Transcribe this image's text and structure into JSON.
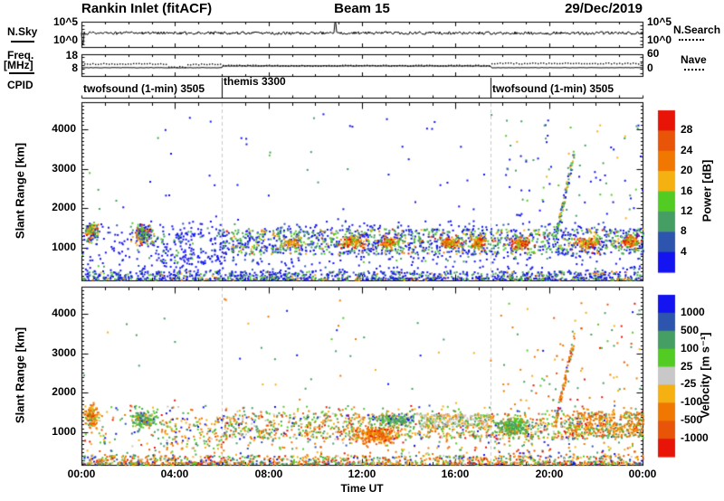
{
  "header": {
    "title": "Rankin Inlet (fitACF)",
    "beam": "Beam 15",
    "date": "29/Dec/2019"
  },
  "labels": {
    "nsky": "N.Sky",
    "nsearch": "N.Search",
    "freq1": "Freq.",
    "freq2": "[MHz]",
    "nave": "Nave",
    "cpid": "CPID",
    "slant_range": "Slant Range [km]",
    "time_ut": "Time UT",
    "nsky_hi": "10^5",
    "nsky_lo": "10^0",
    "freq_hi": "18",
    "freq_lo": "8",
    "nave_hi": "60",
    "nave_lo": "0"
  },
  "palette": {
    "blue": "#1414f0",
    "steelblue": "#2d55ae",
    "seagreen": "#459e63",
    "green": "#52cc22",
    "gray": "#c8c8c8",
    "gold": "#f5b012",
    "orange": "#f07800",
    "orangered": "#e85408",
    "red": "#e81408",
    "dashed_guide": "#c9c9c9",
    "axis": "#000000"
  },
  "time_axis": {
    "label": "Time UT",
    "tick_labels": [
      "00:00",
      "04:00",
      "08:00",
      "12:00",
      "16:00",
      "20:00",
      "00:00"
    ],
    "tick_hours": [
      0,
      4,
      8,
      12,
      16,
      20,
      24
    ],
    "range_hours": [
      0,
      24
    ]
  },
  "chart_data": [
    {
      "id": "nsky_panel",
      "type": "line",
      "left_title": "N.Sky",
      "right_title": "N.Search",
      "y_scale": "log",
      "y_tick_labels": [
        "10^5",
        "10^0"
      ],
      "series": [
        {
          "name": "N.Sky",
          "style": "solid",
          "baseline_frac": 0.45,
          "noise_frac": 0.12,
          "spikes": [
            {
              "t": 0.05,
              "frac": 0.88
            },
            {
              "t": 10.85,
              "frac": 0.05
            }
          ]
        },
        {
          "name": "N.Search",
          "style": "dotted",
          "visible_in_plot": false
        }
      ]
    },
    {
      "id": "freq_nave_panel",
      "type": "line",
      "left_title": "Freq. [MHz]",
      "left_tick_labels": [
        "18",
        "8"
      ],
      "right_title": "Nave",
      "right_tick_labels": [
        "60",
        "0"
      ],
      "series": [
        {
          "name": "Freq",
          "style": "solid",
          "steps": [
            {
              "t0": 0,
              "t1": 6,
              "frac": 0.62
            },
            {
              "t0": 6,
              "t1": 17.5,
              "frac": 0.54
            },
            {
              "t0": 17.5,
              "t1": 24,
              "frac": 0.62
            }
          ]
        },
        {
          "name": "Nave",
          "style": "dotted",
          "steps": [
            {
              "t0": 0,
              "t1": 3.7,
              "frac": 0.42
            },
            {
              "t0": 3.7,
              "t1": 4.5,
              "frac": 0.56
            },
            {
              "t0": 4.5,
              "t1": 6,
              "frac": 0.44
            },
            {
              "t0": 6,
              "t1": 17.5,
              "frac": 0.5
            },
            {
              "t0": 17.5,
              "t1": 24,
              "frac": 0.4
            }
          ]
        }
      ]
    },
    {
      "id": "cpid_row",
      "type": "timeline",
      "label": "CPID",
      "segments": [
        {
          "text": "twofsound (1-min) 3505",
          "t_start": 0,
          "row": "low"
        },
        {
          "text": "themis 3300",
          "t_start": 6,
          "row": "high"
        },
        {
          "text": "twofsound (1-min) 3505",
          "t_start": 17.5,
          "row": "low"
        }
      ],
      "boundaries_hours": [
        6,
        17.5
      ]
    },
    {
      "id": "power_panel",
      "type": "scatter",
      "ylabel": "Slant Range [km]",
      "y_range_km": [
        180,
        4680
      ],
      "y_tick_km": [
        1000,
        2000,
        3000,
        4000
      ],
      "guide_lines_hours": [
        6,
        17.5
      ],
      "colorbar": {
        "title": "Power [dB]",
        "boundary_labels": [
          "28",
          "24",
          "20",
          "16",
          "12",
          "8",
          "4"
        ],
        "segment_colors_top_to_bottom": [
          "red",
          "orangered",
          "orange",
          "gold",
          "green",
          "seagreen",
          "steelblue",
          "blue"
        ]
      },
      "clusters": [
        {
          "name": "meteor-band",
          "t": [
            0,
            24
          ],
          "r": [
            180,
            430
          ],
          "n": 900,
          "shape": "uniform",
          "colors": {
            "blue": 0.5,
            "steelblue": 0.12,
            "seagreen": 0.18,
            "green": 0.12,
            "gold": 0.04,
            "orange": 0.04
          }
        },
        {
          "name": "bottom-line",
          "t": [
            0,
            24
          ],
          "r": [
            180,
            260
          ],
          "n": 450,
          "shape": "uniform",
          "colors": {
            "blue": 0.45,
            "seagreen": 0.2,
            "green": 0.2,
            "gold": 0.08,
            "orange": 0.07
          }
        },
        {
          "name": "low-diffuse",
          "t": [
            0,
            24
          ],
          "r": [
            400,
            1700
          ],
          "n": 650,
          "shape": "uniform",
          "colors": {
            "blue": 0.78,
            "steelblue": 0.1,
            "seagreen": 0.08,
            "green": 0.04
          }
        },
        {
          "name": "blob-00h",
          "t": [
            0,
            0.8
          ],
          "r": [
            1050,
            1750
          ],
          "n": 130,
          "shape": "blob",
          "colors": {
            "blue": 0.2,
            "seagreen": 0.2,
            "green": 0.2,
            "gold": 0.15,
            "orange": 0.15,
            "red": 0.1
          }
        },
        {
          "name": "blob-02h",
          "t": [
            1.9,
            3.3
          ],
          "r": [
            1000,
            1700
          ],
          "n": 170,
          "shape": "blob",
          "colors": {
            "blue": 0.22,
            "seagreen": 0.2,
            "green": 0.2,
            "gold": 0.13,
            "orange": 0.15,
            "red": 0.1
          }
        },
        {
          "name": "early-sparse",
          "t": [
            3.2,
            6.2
          ],
          "r": [
            600,
            1400
          ],
          "n": 130,
          "shape": "uniform",
          "colors": {
            "blue": 0.8,
            "seagreen": 0.12,
            "green": 0.08
          }
        },
        {
          "name": "gs-band",
          "t": [
            6,
            24
          ],
          "r": [
            850,
            1500
          ],
          "n": 1300,
          "shape": "uniform",
          "colors": {
            "blue": 0.32,
            "steelblue": 0.08,
            "seagreen": 0.24,
            "green": 0.2,
            "gold": 0.08,
            "orange": 0.06,
            "red": 0.02
          }
        },
        {
          "name": "core-0830",
          "t": [
            8.4,
            9.4
          ],
          "r": [
            950,
            1350
          ],
          "n": 60,
          "shape": "blob",
          "colors": {
            "orange": 0.3,
            "red": 0.2,
            "gold": 0.3,
            "green": 0.2
          }
        },
        {
          "name": "core-11",
          "t": [
            10.8,
            12.3
          ],
          "r": [
            950,
            1350
          ],
          "n": 95,
          "shape": "blob",
          "colors": {
            "orange": 0.3,
            "red": 0.25,
            "gold": 0.25,
            "green": 0.2
          }
        },
        {
          "name": "core-13",
          "t": [
            12.5,
            13.7
          ],
          "r": [
            950,
            1350
          ],
          "n": 95,
          "shape": "blob",
          "colors": {
            "orange": 0.3,
            "red": 0.25,
            "gold": 0.25,
            "green": 0.2
          }
        },
        {
          "name": "core-1530",
          "t": [
            15.2,
            16.3
          ],
          "r": [
            950,
            1350
          ],
          "n": 95,
          "shape": "blob",
          "colors": {
            "orange": 0.3,
            "red": 0.25,
            "gold": 0.25,
            "green": 0.2
          }
        },
        {
          "name": "core-17",
          "t": [
            16.5,
            17.4
          ],
          "r": [
            950,
            1350
          ],
          "n": 95,
          "shape": "blob",
          "colors": {
            "orange": 0.3,
            "red": 0.25,
            "gold": 0.25,
            "green": 0.2
          }
        },
        {
          "name": "core-1830",
          "t": [
            18.2,
            19.3
          ],
          "r": [
            950,
            1350
          ],
          "n": 95,
          "shape": "blob",
          "colors": {
            "orange": 0.3,
            "red": 0.25,
            "gold": 0.25,
            "green": 0.2
          }
        },
        {
          "name": "core-2130",
          "t": [
            21.0,
            22.3
          ],
          "r": [
            950,
            1350
          ],
          "n": 95,
          "shape": "blob",
          "colors": {
            "orange": 0.3,
            "red": 0.25,
            "gold": 0.25,
            "green": 0.2
          }
        },
        {
          "name": "core-2330",
          "t": [
            22.9,
            24.0
          ],
          "r": [
            950,
            1400
          ],
          "n": 95,
          "shape": "blob",
          "colors": {
            "orange": 0.3,
            "red": 0.25,
            "gold": 0.25,
            "green": 0.2
          }
        },
        {
          "name": "diag-streak",
          "t": [
            20.25,
            21.05
          ],
          "r": [
            1300,
            3400
          ],
          "n": 85,
          "shape": "diag",
          "colors": {
            "green": 0.3,
            "seagreen": 0.3,
            "blue": 0.3,
            "gold": 0.1
          }
        },
        {
          "name": "high-sparse",
          "t": [
            0,
            24
          ],
          "r": [
            1700,
            4400
          ],
          "n": 70,
          "shape": "uniform",
          "colors": {
            "blue": 0.7,
            "seagreen": 0.2,
            "green": 0.1
          }
        },
        {
          "name": "high-sparse-late",
          "t": [
            18,
            24
          ],
          "r": [
            1700,
            4300
          ],
          "n": 60,
          "shape": "uniform",
          "colors": {
            "blue": 0.4,
            "seagreen": 0.3,
            "green": 0.15,
            "gold": 0.1,
            "orange": 0.05
          }
        }
      ]
    },
    {
      "id": "velocity_panel",
      "type": "scatter",
      "ylabel": "Slant Range [km]",
      "xlabel": "Time UT",
      "y_range_km": [
        180,
        4680
      ],
      "y_tick_km": [
        1000,
        2000,
        3000,
        4000
      ],
      "guide_lines_hours": [
        6,
        17.5
      ],
      "colorbar": {
        "title": "Velocity [m s⁻¹]",
        "boundary_labels": [
          "1000",
          "500",
          "100",
          "25",
          "-25",
          "-100",
          "-500",
          "-1000"
        ],
        "segment_colors_top_to_bottom": [
          "blue",
          "steelblue",
          "seagreen",
          "green",
          "gray",
          "gold",
          "orange",
          "orangered",
          "red"
        ]
      },
      "clusters": [
        {
          "name": "meteor-band",
          "t": [
            0,
            24
          ],
          "r": [
            180,
            430
          ],
          "n": 900,
          "shape": "uniform",
          "colors": {
            "blue": 0.08,
            "steelblue": 0.07,
            "seagreen": 0.14,
            "green": 0.12,
            "gray": 0.07,
            "gold": 0.14,
            "orange": 0.18,
            "orangered": 0.1,
            "red": 0.1
          }
        },
        {
          "name": "bottom-line",
          "t": [
            0,
            24
          ],
          "r": [
            180,
            260
          ],
          "n": 450,
          "shape": "uniform",
          "colors": {
            "blue": 0.08,
            "steelblue": 0.07,
            "seagreen": 0.14,
            "green": 0.12,
            "gray": 0.07,
            "gold": 0.14,
            "orange": 0.18,
            "orangered": 0.1,
            "red": 0.1
          }
        },
        {
          "name": "low-diffuse",
          "t": [
            0,
            24
          ],
          "r": [
            400,
            1700
          ],
          "n": 600,
          "shape": "uniform",
          "colors": {
            "orange": 0.22,
            "gold": 0.14,
            "seagreen": 0.16,
            "green": 0.12,
            "gray": 0.06,
            "blue": 0.08,
            "steelblue": 0.06,
            "orangered": 0.08,
            "red": 0.08
          }
        },
        {
          "name": "blob-00h",
          "t": [
            0,
            0.8
          ],
          "r": [
            1050,
            1800
          ],
          "n": 130,
          "shape": "blob",
          "colors": {
            "orange": 0.4,
            "gold": 0.25,
            "orangered": 0.12,
            "red": 0.05,
            "seagreen": 0.1,
            "green": 0.08
          }
        },
        {
          "name": "blob-02h",
          "t": [
            1.9,
            3.3
          ],
          "r": [
            1000,
            1700
          ],
          "n": 170,
          "shape": "blob",
          "colors": {
            "seagreen": 0.4,
            "green": 0.3,
            "gray": 0.08,
            "orange": 0.1,
            "gold": 0.06,
            "blue": 0.06
          }
        },
        {
          "name": "early-sparse",
          "t": [
            3.2,
            6.2
          ],
          "r": [
            600,
            1400
          ],
          "n": 120,
          "shape": "uniform",
          "colors": {
            "orange": 0.3,
            "gold": 0.2,
            "seagreen": 0.2,
            "green": 0.15,
            "blue": 0.15
          }
        },
        {
          "name": "band-mixed",
          "t": [
            6,
            24
          ],
          "r": [
            850,
            1500
          ],
          "n": 1100,
          "shape": "uniform",
          "colors": {
            "seagreen": 0.2,
            "green": 0.16,
            "orange": 0.24,
            "gold": 0.16,
            "gray": 0.1,
            "blue": 0.05,
            "orangered": 0.05,
            "red": 0.04
          }
        },
        {
          "name": "teal-mid",
          "t": [
            12.0,
            14.6
          ],
          "r": [
            1150,
            1500
          ],
          "n": 160,
          "shape": "blob",
          "colors": {
            "seagreen": 0.55,
            "green": 0.25,
            "gray": 0.1,
            "blue": 0.1
          }
        },
        {
          "name": "big-orange",
          "t": [
            11.3,
            13.9
          ],
          "r": [
            650,
            1250
          ],
          "n": 240,
          "shape": "blob",
          "colors": {
            "orange": 0.5,
            "orangered": 0.2,
            "gold": 0.18,
            "red": 0.12
          }
        },
        {
          "name": "gray-patch",
          "t": [
            14.4,
            17.4
          ],
          "r": [
            1150,
            1480
          ],
          "n": 170,
          "shape": "uniform",
          "colors": {
            "gray": 0.55,
            "gold": 0.18,
            "seagreen": 0.12,
            "green": 0.08,
            "orange": 0.07
          }
        },
        {
          "name": "green-blob",
          "t": [
            17.4,
            19.4
          ],
          "r": [
            850,
            1450
          ],
          "n": 200,
          "shape": "blob",
          "colors": {
            "seagreen": 0.45,
            "green": 0.35,
            "gray": 0.05,
            "orange": 0.1,
            "gold": 0.05
          }
        },
        {
          "name": "orange-late",
          "t": [
            20.8,
            24
          ],
          "r": [
            900,
            1550
          ],
          "n": 280,
          "shape": "uniform",
          "colors": {
            "orange": 0.42,
            "gold": 0.2,
            "orangered": 0.15,
            "red": 0.05,
            "seagreen": 0.1,
            "green": 0.08
          }
        },
        {
          "name": "diag-streak",
          "t": [
            20.25,
            21.05
          ],
          "r": [
            1300,
            3400
          ],
          "n": 80,
          "shape": "diag",
          "colors": {
            "orange": 0.35,
            "orangered": 0.2,
            "red": 0.15,
            "gold": 0.15,
            "seagreen": 0.15
          }
        },
        {
          "name": "high-sparse",
          "t": [
            0,
            24
          ],
          "r": [
            1700,
            4400
          ],
          "n": 60,
          "shape": "uniform",
          "colors": {
            "seagreen": 0.3,
            "orange": 0.2,
            "gold": 0.15,
            "blue": 0.15,
            "green": 0.1,
            "red": 0.1
          }
        },
        {
          "name": "high-sparse-late",
          "t": [
            18,
            24
          ],
          "r": [
            1700,
            4300
          ],
          "n": 70,
          "shape": "uniform",
          "colors": {
            "orange": 0.3,
            "orangered": 0.15,
            "red": 0.1,
            "seagreen": 0.2,
            "green": 0.1,
            "gold": 0.15
          }
        }
      ]
    }
  ]
}
